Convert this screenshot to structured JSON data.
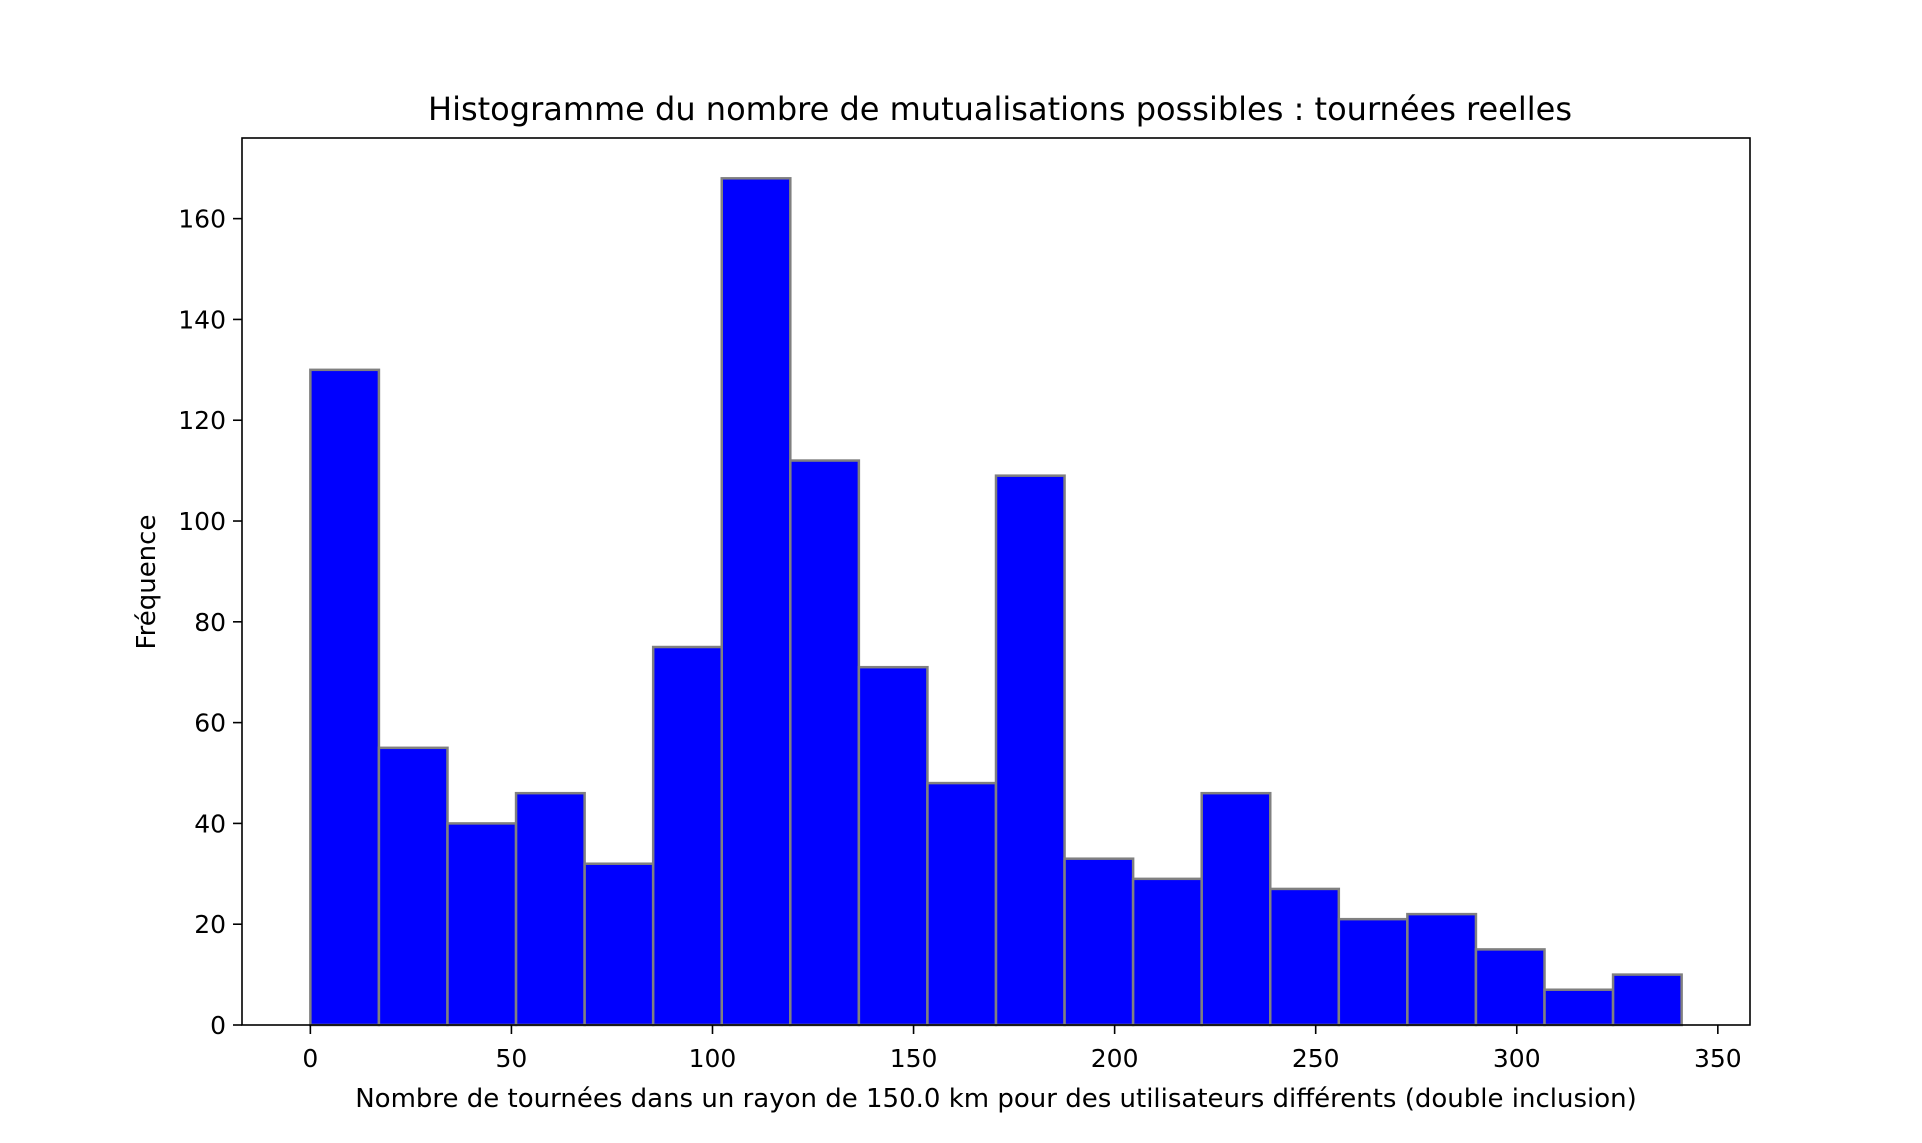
{
  "chart_data": {
    "type": "bar",
    "title": "Histogramme du nombre de mutualisations possibles : tournées reelles",
    "xlabel": "Nombre de tournées dans un rayon de 150.0 km pour des utilisateurs différents (double inclusion)",
    "ylabel": "Fréquence",
    "xlim": [
      -17,
      358
    ],
    "ylim": [
      0,
      176
    ],
    "xticks": [
      0,
      50,
      100,
      150,
      200,
      250,
      300,
      350
    ],
    "yticks": [
      0,
      20,
      40,
      60,
      80,
      100,
      120,
      140,
      160
    ],
    "bin_edges": [
      0,
      17.05,
      34.1,
      51.15,
      68.2,
      85.25,
      102.3,
      119.35,
      136.4,
      153.45,
      170.5,
      187.55,
      204.6,
      221.65,
      238.7,
      255.75,
      272.8,
      289.85,
      306.9,
      323.95,
      341
    ],
    "values": [
      130,
      55,
      40,
      46,
      32,
      75,
      168,
      112,
      71,
      48,
      109,
      33,
      29,
      46,
      27,
      21,
      22,
      15,
      7,
      10
    ],
    "bar_color": "#0000ff",
    "edge_color": "#808080",
    "grid": false,
    "legend": "none"
  }
}
